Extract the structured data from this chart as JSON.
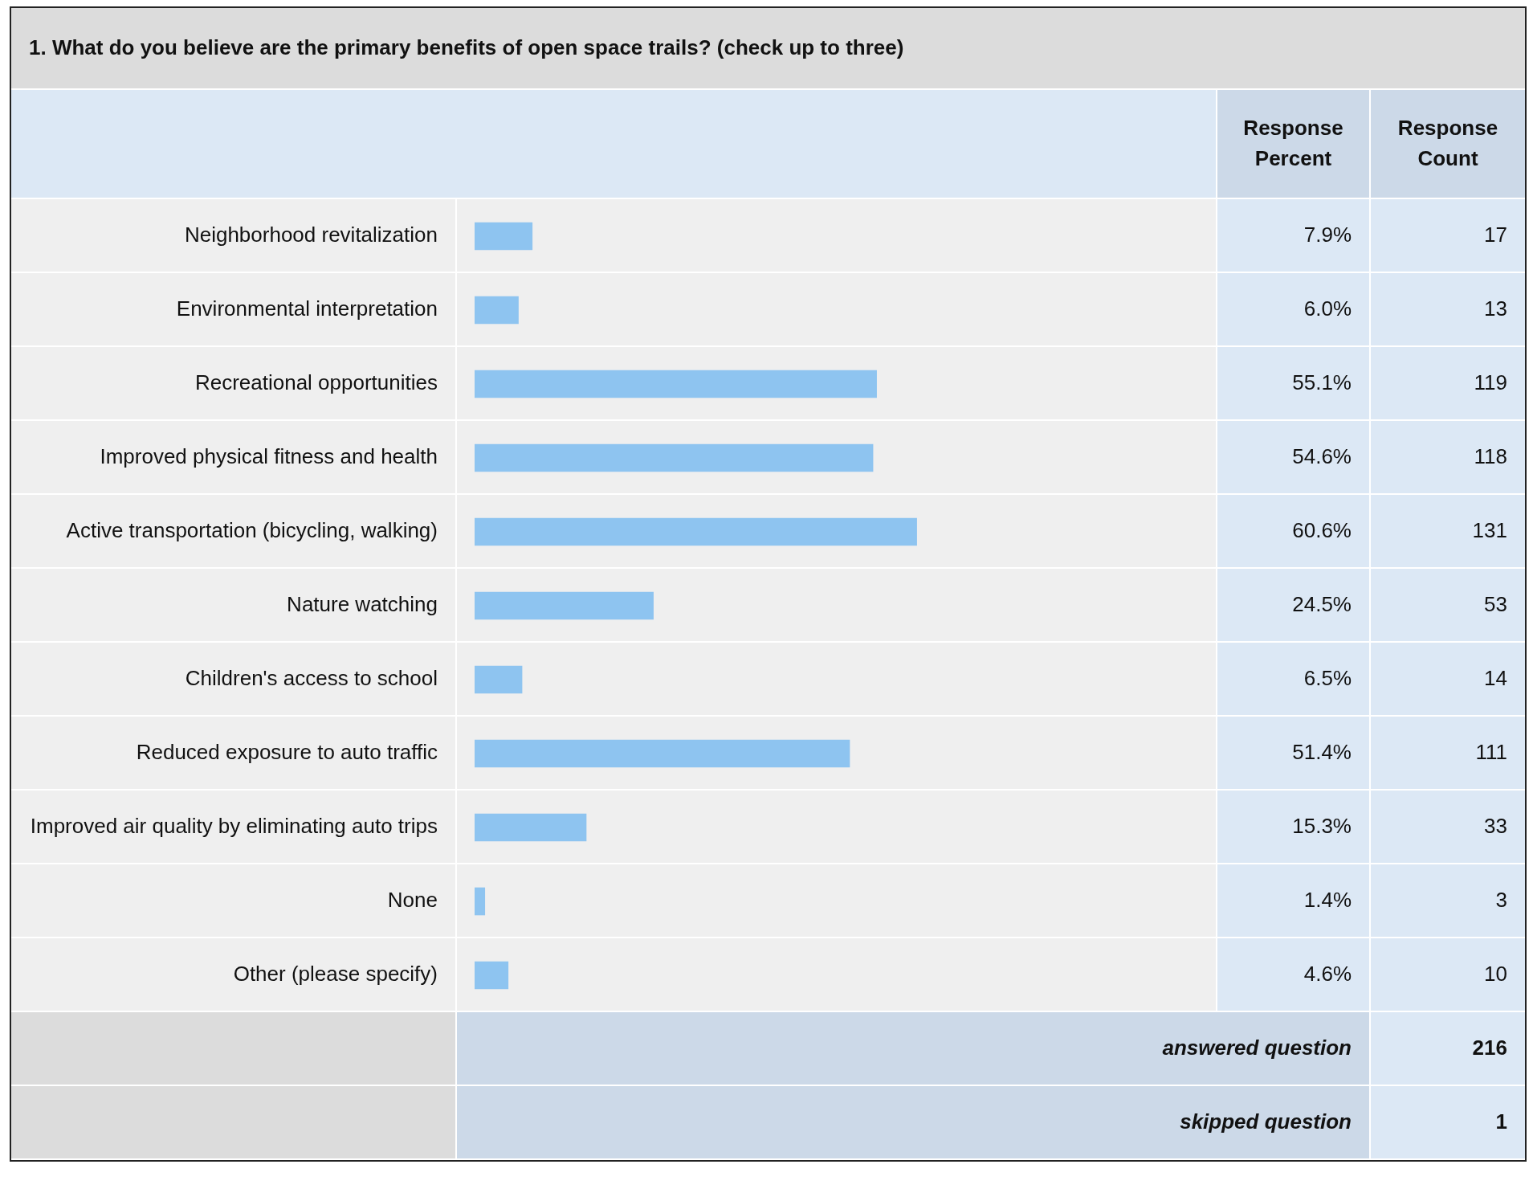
{
  "chart_data": {
    "type": "bar",
    "orientation": "horizontal",
    "title": "1. What do you believe are the primary benefits of open space trails? (check up to three)",
    "categories": [
      "Neighborhood revitalization",
      "Environmental interpretation",
      "Recreational opportunities",
      "Improved physical fitness and health",
      "Active transportation (bicycling, walking)",
      "Nature watching",
      "Children's access to school",
      "Reduced exposure to auto traffic",
      "Improved air quality by eliminating auto trips",
      "None",
      "Other (please specify)"
    ],
    "series": [
      {
        "name": "Response Percent",
        "color": "#8ec4f0",
        "values": [
          7.9,
          6.0,
          55.1,
          54.6,
          60.6,
          24.5,
          6.5,
          51.4,
          15.3,
          1.4,
          4.6
        ],
        "value_labels": [
          "7.9%",
          "6.0%",
          "55.1%",
          "54.6%",
          "60.6%",
          "24.5%",
          "6.5%",
          "51.4%",
          "15.3%",
          "1.4%",
          "4.6%"
        ]
      }
    ],
    "legend": false,
    "annotations": [
      "Response Count",
      "17",
      "13",
      "119",
      "118",
      "131",
      "53",
      "14",
      "111",
      "33",
      "3",
      "10",
      "answered question",
      "216",
      "skipped question",
      "1"
    ]
  }
}
